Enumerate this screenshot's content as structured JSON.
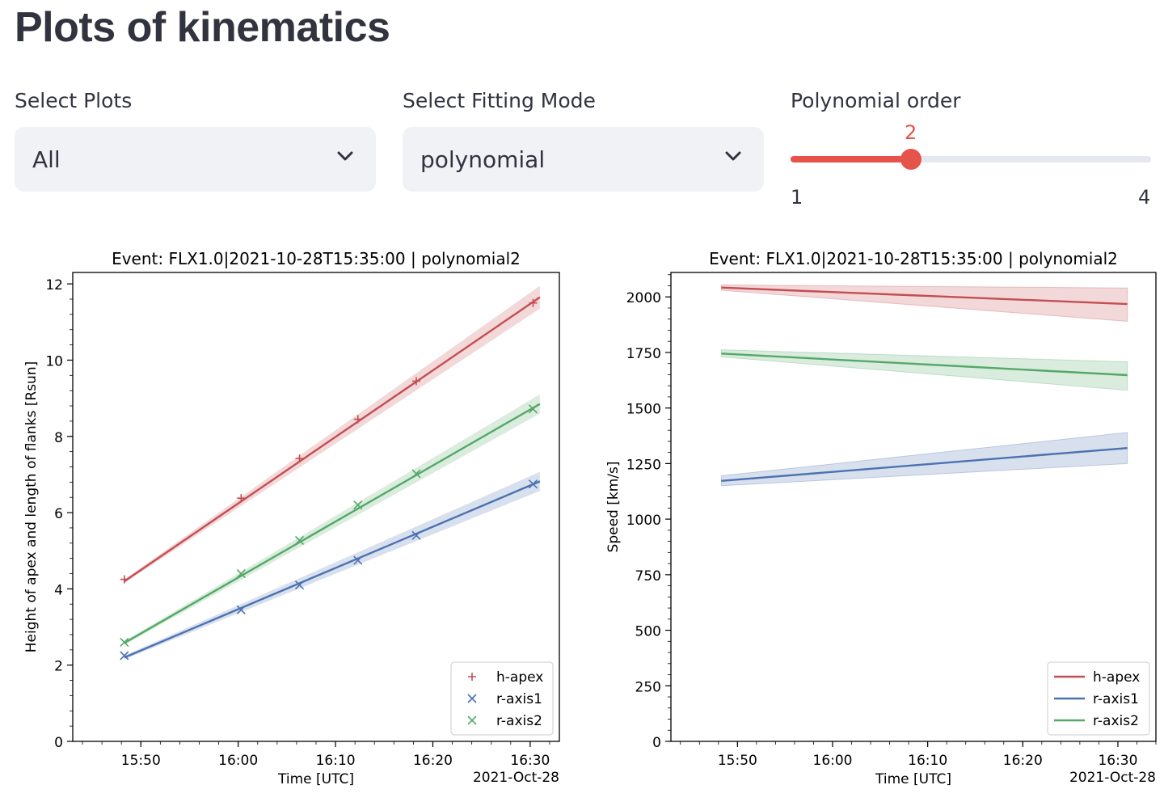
{
  "page": {
    "title": "Plots of kinematics"
  },
  "controls": {
    "select_plots": {
      "label": "Select Plots",
      "value": "All"
    },
    "fitting_mode": {
      "label": "Select Fitting Mode",
      "value": "polynomial"
    },
    "poly_order": {
      "label": "Polynomial order",
      "value": 2,
      "value_text": "2",
      "min": 1,
      "max": 4,
      "min_text": "1",
      "max_text": "4"
    }
  },
  "colors": {
    "accent": "#e5534b",
    "h_apex": "#c44e52",
    "r_axis1": "#4c72b0",
    "r_axis2": "#55a868"
  },
  "chart_data": [
    {
      "type": "line",
      "title": "Event: FLX1.0|2021-10-28T15:35:00 | polynomial2",
      "xlabel": "Time [UTC]",
      "xlabel_extra": "2021-Oct-28",
      "ylabel": "Height of apex and length of flanks [Rsun]",
      "xlim": [
        "15:43",
        "16:33"
      ],
      "ylim": [
        0,
        12.3
      ],
      "xticks": [
        "15:50",
        "16:00",
        "16:10",
        "16:20",
        "16:30"
      ],
      "yticks": [
        "0",
        "2",
        "4",
        "6",
        "8",
        "10",
        "12"
      ],
      "legend_position": "lower-right",
      "series": [
        {
          "name": "h-apex",
          "marker": "+",
          "color": "#c44e52",
          "points_x": [
            "15:48.3",
            "16:00.3",
            "16:06.3",
            "16:12.3",
            "16:18.3",
            "16:30.3"
          ],
          "points_y": [
            4.25,
            6.38,
            7.42,
            8.45,
            9.45,
            11.5
          ],
          "fit_x": [
            "15:48.3",
            "16:31.0"
          ],
          "fit_y": [
            4.2,
            11.65
          ],
          "band": [
            0.05,
            0.3
          ]
        },
        {
          "name": "r-axis1",
          "marker": "x",
          "color": "#4c72b0",
          "points_x": [
            "15:48.3",
            "16:00.3",
            "16:06.3",
            "16:12.3",
            "16:18.3",
            "16:30.3"
          ],
          "points_y": [
            2.25,
            3.45,
            4.1,
            4.75,
            5.4,
            6.75
          ],
          "fit_x": [
            "15:48.3",
            "16:31.0"
          ],
          "fit_y": [
            2.2,
            6.82
          ],
          "band": [
            0.05,
            0.25
          ]
        },
        {
          "name": "r-axis2",
          "marker": "x",
          "color": "#55a868",
          "points_x": [
            "15:48.3",
            "16:00.3",
            "16:06.3",
            "16:12.3",
            "16:18.3",
            "16:30.3"
          ],
          "points_y": [
            2.6,
            4.4,
            5.27,
            6.2,
            7.02,
            8.72
          ],
          "fit_x": [
            "15:48.3",
            "16:31.0"
          ],
          "fit_y": [
            2.58,
            8.85
          ],
          "band": [
            0.05,
            0.25
          ]
        }
      ]
    },
    {
      "type": "line",
      "title": "Event: FLX1.0|2021-10-28T15:35:00 | polynomial2",
      "xlabel": "Time [UTC]",
      "xlabel_extra": "2021-Oct-28",
      "ylabel": "Speed [km/s]",
      "xlim": [
        "15:43",
        "16:34"
      ],
      "ylim": [
        0,
        2110
      ],
      "xticks": [
        "15:50",
        "16:00",
        "16:10",
        "16:20",
        "16:30"
      ],
      "yticks": [
        "0",
        "250",
        "500",
        "750",
        "1000",
        "1250",
        "1500",
        "1750",
        "2000"
      ],
      "legend_position": "lower-right",
      "series": [
        {
          "name": "h-apex",
          "color": "#c44e52",
          "x": [
            "15:48.3",
            "16:31.0"
          ],
          "y": [
            2042,
            1968
          ],
          "lower": [
            2030,
            1890
          ],
          "upper": [
            2054,
            2040
          ]
        },
        {
          "name": "r-axis1",
          "color": "#4c72b0",
          "x": [
            "15:48.3",
            "16:31.0"
          ],
          "y": [
            1172,
            1320
          ],
          "lower": [
            1150,
            1250
          ],
          "upper": [
            1195,
            1390
          ]
        },
        {
          "name": "r-axis2",
          "color": "#55a868",
          "x": [
            "15:48.3",
            "16:31.0"
          ],
          "y": [
            1745,
            1648
          ],
          "lower": [
            1730,
            1580
          ],
          "upper": [
            1762,
            1708
          ]
        }
      ]
    }
  ]
}
